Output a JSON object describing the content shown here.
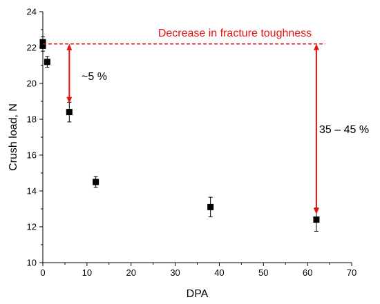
{
  "chart_data": {
    "type": "scatter",
    "xlabel": "DPA",
    "ylabel": "Crush load, N",
    "xlim": [
      0,
      70
    ],
    "ylim": [
      10,
      24
    ],
    "x_ticks": [
      "0",
      "10",
      "20",
      "30",
      "40",
      "50",
      "60",
      "70"
    ],
    "y_ticks": [
      "10",
      "12",
      "14",
      "16",
      "18",
      "20",
      "22",
      "24"
    ],
    "grid": false,
    "series": [
      {
        "marker": "square",
        "color": "#000000",
        "points": [
          {
            "x": 0,
            "y": 22.3,
            "err": 0.3
          },
          {
            "x": 0,
            "y": 22.1,
            "err": 0.3
          },
          {
            "x": 1,
            "y": 21.2,
            "err": 0.3
          },
          {
            "x": 6,
            "y": 18.4,
            "err": 0.55
          },
          {
            "x": 12,
            "y": 14.5,
            "err": 0.3
          },
          {
            "x": 38,
            "y": 13.1,
            "err": 0.55
          },
          {
            "x": 62,
            "y": 12.4,
            "err": 0.65
          }
        ]
      }
    ],
    "annotations": {
      "reference_line": {
        "y": 22.2,
        "x_start": 0,
        "x_end": 64,
        "style": "dashed",
        "color": "#e8110f"
      },
      "title_text": "Decrease in fracture toughness",
      "arrow_left": {
        "x": 6,
        "y_from": 22.2,
        "y_to": 18.9,
        "label": "~5 %"
      },
      "arrow_right": {
        "x": 62,
        "y_from": 22.2,
        "y_to": 12.7,
        "label": "35 – 45 %"
      }
    }
  }
}
